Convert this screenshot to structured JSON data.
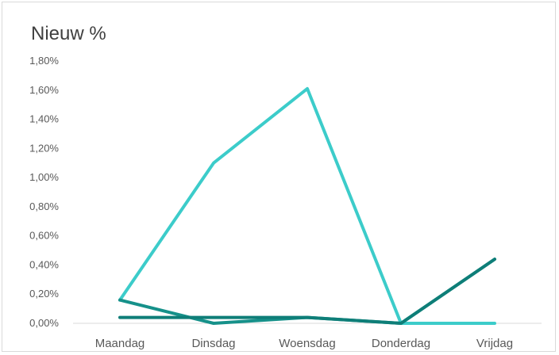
{
  "chart_data": {
    "type": "line",
    "title": "Nieuw %",
    "xlabel": "",
    "ylabel": "",
    "categories": [
      "Maandag",
      "Dinsdag",
      "Woensdag",
      "Donderdag",
      "Vrijdag"
    ],
    "ylim": [
      0,
      0.018
    ],
    "y_ticks": [
      0,
      0.002,
      0.004,
      0.006,
      0.008,
      0.01,
      0.012,
      0.014,
      0.016,
      0.018
    ],
    "y_tick_labels": [
      "0,00%",
      "0,20%",
      "0,40%",
      "0,60%",
      "0,80%",
      "1,00%",
      "1,20%",
      "1,40%",
      "1,60%",
      "1,80%"
    ],
    "grid": false,
    "legend": "none",
    "series": [
      {
        "values": [
          0.0016,
          0.011,
          0.0161,
          0.0,
          0.0
        ],
        "color": "#3cccca"
      },
      {
        "values": [
          0.0016,
          0.0,
          0.0004,
          0.0,
          0.0044
        ],
        "color": "#16918a"
      },
      {
        "values": [
          0.0004,
          0.0004,
          0.0004,
          0.0,
          0.0044
        ],
        "color": "#0e7e78"
      }
    ]
  }
}
